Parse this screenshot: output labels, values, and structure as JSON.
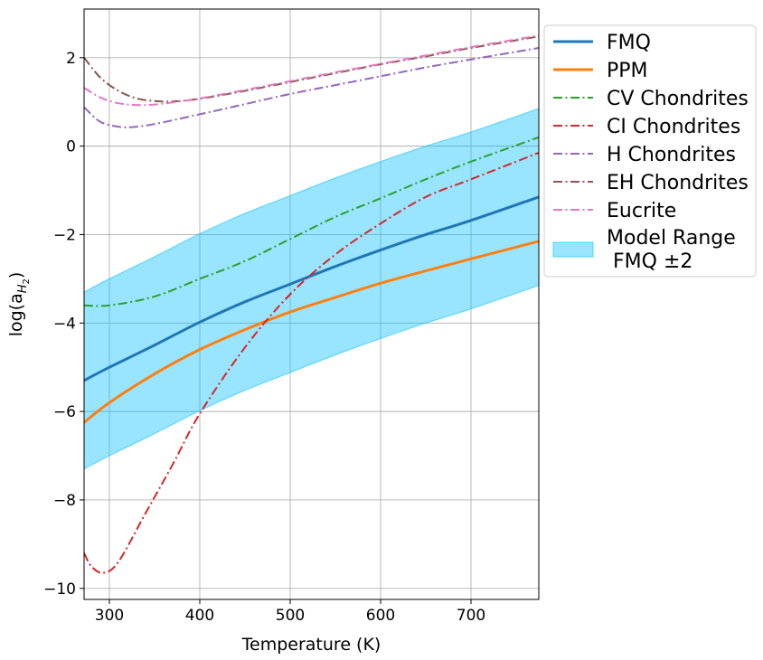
{
  "chart_data": {
    "type": "line",
    "xlabel": "Temperature (K)",
    "ylabel_prefix": "log(a",
    "ylabel_sub": "H",
    "ylabel_subsub": "2",
    "ylabel_suffix": ")",
    "xlim": [
      272,
      775
    ],
    "ylim": [
      -10.25,
      3.1
    ],
    "xticks": [
      300,
      400,
      500,
      600,
      700
    ],
    "yticks": [
      -10,
      -8,
      -6,
      -4,
      -2,
      0,
      2
    ],
    "grid": true,
    "legend_position": "outside-right",
    "series": [
      {
        "name": "FMQ",
        "color": "#1f77b4",
        "style": "solid",
        "x": [
          272,
          300,
          350,
          400,
          450,
          500,
          550,
          600,
          650,
          700,
          775
        ],
        "y": [
          -5.3,
          -5.0,
          -4.5,
          -3.98,
          -3.52,
          -3.12,
          -2.72,
          -2.35,
          -2.0,
          -1.68,
          -1.15
        ]
      },
      {
        "name": "PPM",
        "color": "#ff7f0e",
        "style": "solid",
        "x": [
          272,
          300,
          350,
          400,
          450,
          500,
          550,
          600,
          650,
          700,
          775
        ],
        "y": [
          -6.25,
          -5.8,
          -5.15,
          -4.6,
          -4.15,
          -3.75,
          -3.42,
          -3.1,
          -2.82,
          -2.55,
          -2.15
        ]
      },
      {
        "name": "CV Chondrites",
        "color": "#2ca02c",
        "style": "dashdot",
        "x": [
          272,
          300,
          350,
          400,
          450,
          500,
          550,
          600,
          650,
          700,
          775
        ],
        "y": [
          -3.6,
          -3.6,
          -3.4,
          -3.0,
          -2.6,
          -2.1,
          -1.6,
          -1.18,
          -0.75,
          -0.35,
          0.2
        ]
      },
      {
        "name": "CI Chondrites",
        "color": "#d62728",
        "style": "dashdot",
        "x": [
          272,
          280,
          293,
          310,
          340,
          370,
          400,
          450,
          500,
          550,
          600,
          650,
          700,
          775
        ],
        "y": [
          -9.2,
          -9.5,
          -9.65,
          -9.4,
          -8.3,
          -7.2,
          -6.05,
          -4.55,
          -3.35,
          -2.45,
          -1.75,
          -1.15,
          -0.75,
          -0.15
        ]
      },
      {
        "name": "H Chondrites",
        "color": "#9467bd",
        "style": "dashdot",
        "x": [
          272,
          290,
          310,
          325,
          350,
          400,
          450,
          500,
          550,
          600,
          650,
          700,
          775
        ],
        "y": [
          0.88,
          0.55,
          0.44,
          0.43,
          0.5,
          0.72,
          0.95,
          1.18,
          1.38,
          1.58,
          1.78,
          1.96,
          2.22
        ]
      },
      {
        "name": "EH Chondrites",
        "color": "#8c564b",
        "style": "dashdot",
        "x": [
          272,
          290,
          310,
          330,
          350,
          370,
          400,
          450,
          500,
          550,
          600,
          650,
          700,
          775
        ],
        "y": [
          2.0,
          1.55,
          1.25,
          1.08,
          1.02,
          1.01,
          1.07,
          1.25,
          1.45,
          1.65,
          1.85,
          2.03,
          2.22,
          2.48
        ]
      },
      {
        "name": "Eucrite",
        "color": "#e377c2",
        "style": "dashdot",
        "x": [
          272,
          290,
          310,
          330,
          350,
          370,
          400,
          450,
          500,
          550,
          600,
          650,
          700,
          775
        ],
        "y": [
          1.32,
          1.1,
          0.97,
          0.93,
          0.94,
          0.99,
          1.08,
          1.27,
          1.47,
          1.67,
          1.86,
          2.05,
          2.24,
          2.5
        ]
      }
    ],
    "band": {
      "name": "Model Range\n FMQ ±2",
      "color": "#00bfff",
      "opacity": 0.4,
      "x": [
        272,
        300,
        350,
        400,
        450,
        500,
        550,
        600,
        650,
        700,
        775
      ],
      "lower": [
        -7.3,
        -7.0,
        -6.5,
        -5.98,
        -5.52,
        -5.12,
        -4.72,
        -4.35,
        -4.0,
        -3.68,
        -3.15
      ],
      "upper": [
        -3.3,
        -3.0,
        -2.5,
        -1.98,
        -1.52,
        -1.12,
        -0.72,
        -0.35,
        0.0,
        0.32,
        0.85
      ]
    }
  }
}
